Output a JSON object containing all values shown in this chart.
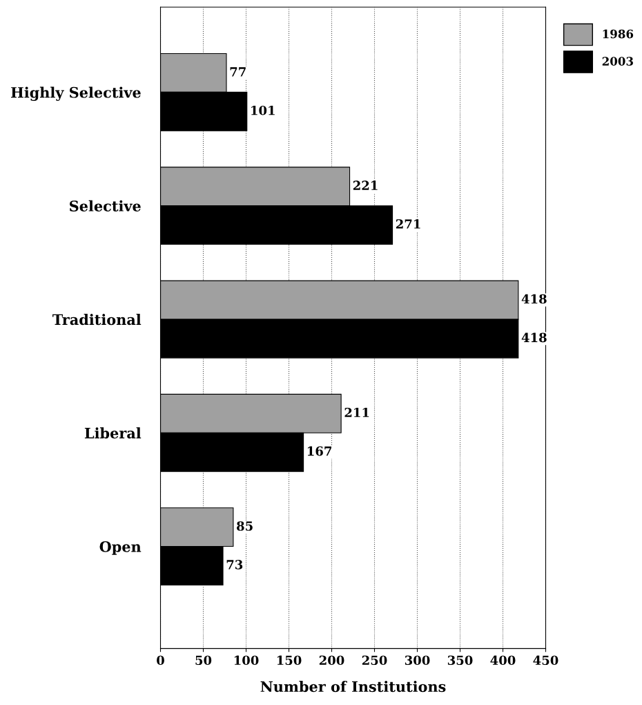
{
  "chart_data": {
    "type": "bar",
    "orientation": "horizontal",
    "xlabel": "Number of Institutions",
    "categories": [
      "Highly Selective",
      "Selective",
      "Traditional",
      "Liberal",
      "Open"
    ],
    "series": [
      {
        "name": "1986",
        "color": "#a0a0a0",
        "values": [
          77,
          221,
          418,
          211,
          85
        ]
      },
      {
        "name": "2003",
        "color": "#000000",
        "values": [
          101,
          271,
          418,
          167,
          73
        ]
      }
    ],
    "xlim": [
      0,
      450
    ],
    "xticks": [
      0,
      50,
      100,
      150,
      200,
      250,
      300,
      350,
      400,
      450
    ],
    "grid": "x",
    "legend": "top right",
    "data_labels": true
  }
}
